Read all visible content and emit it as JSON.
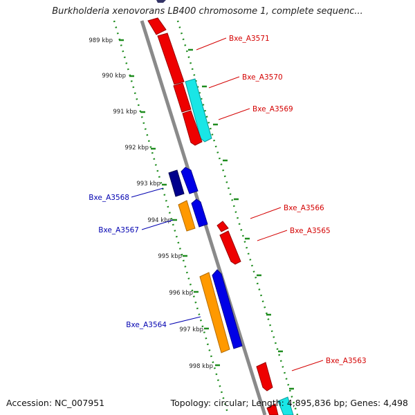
{
  "title": "Burkholderia xenovorans LB400 chromosome 1, complete sequenc...",
  "footer": {
    "accession": "Accession: NC_007951",
    "summary": "Topology: circular; Length: 4,895,836 bp; Genes: 4,498"
  },
  "ruler": [
    "989 kbp",
    "990 kbp",
    "991 kbp",
    "992 kbp",
    "993 kbp",
    "994 kbp",
    "995 kbp",
    "996 kbp",
    "997 kbp",
    "998 kbp"
  ],
  "labels": {
    "a3571": "Bxe_A3571",
    "a3570": "Bxe_A3570",
    "a3569": "Bxe_A3569",
    "a3568": "Bxe_A3568",
    "a3567": "Bxe_A3567",
    "a3566": "Bxe_A3566",
    "a3565": "Bxe_A3565",
    "a3564": "Bxe_A3564",
    "a3563": "Bxe_A3563"
  },
  "colors": {
    "backbone": "#8a8a8a",
    "ruler": "#1e8c1e",
    "forward_gene": "#ee0000",
    "cyan_gene": "#19e6e6",
    "blue_gene": "#0000e6",
    "navy_gene": "#00008c",
    "orange_gene": "#ff9900",
    "forward_label": "#d40000",
    "reverse_label": "#0000b0"
  }
}
